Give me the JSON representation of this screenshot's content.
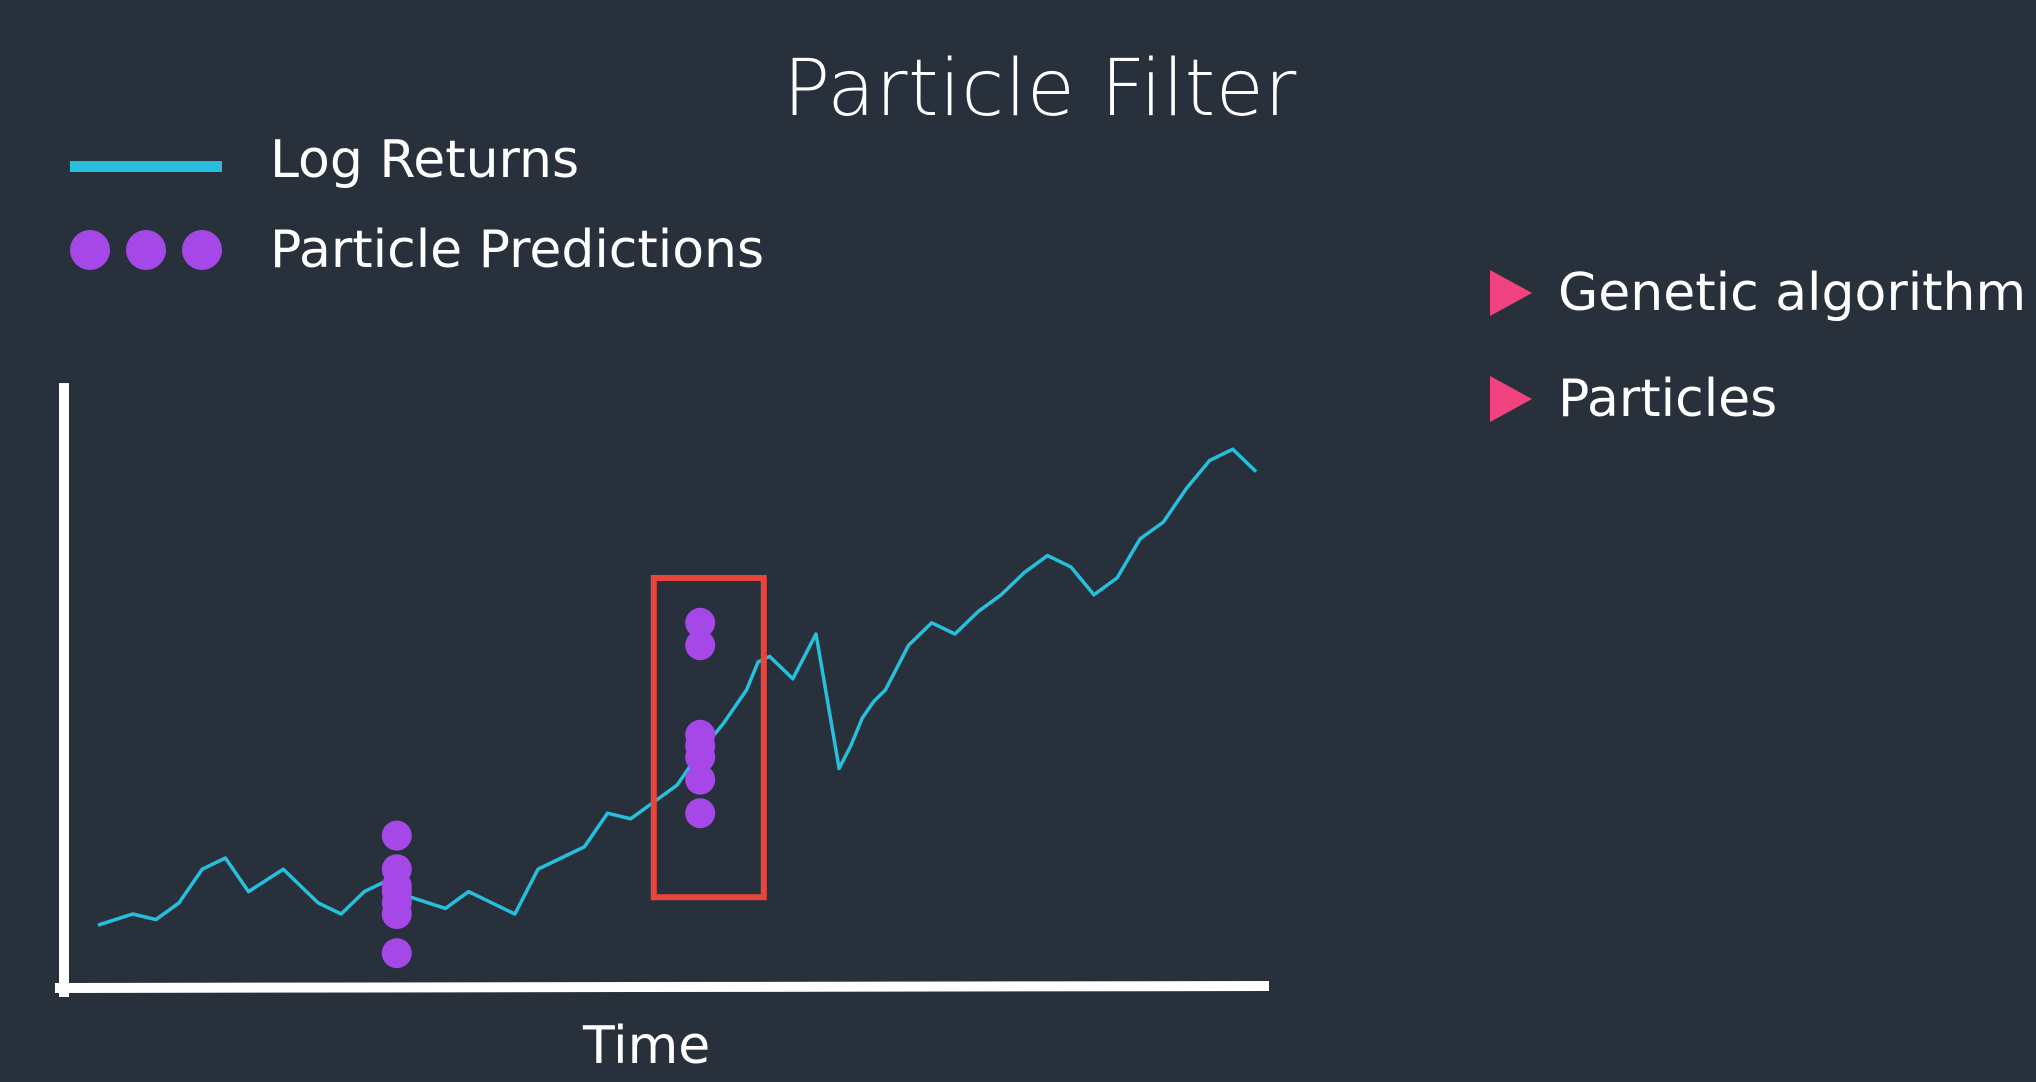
{
  "title": "Particle Filter",
  "legend": {
    "line_label": "Log Returns",
    "dots_label": "Particle Predictions"
  },
  "bullets": [
    {
      "text": "Genetic algorithm"
    },
    {
      "text": "Particles"
    }
  ],
  "colors": {
    "background": "#28313b",
    "line": "#27bfdc",
    "particles": "#a648e8",
    "highlight_box": "#e8453c",
    "bullet_icon": "#f0437f",
    "axes": "#ffffff"
  },
  "icons": {
    "bullet": "triangle-right-icon"
  },
  "chart_data": {
    "type": "line",
    "title": "Particle Filter",
    "xlabel": "Time",
    "ylabel": "",
    "xlim": [
      0,
      1000
    ],
    "ylim": [
      0,
      100
    ],
    "grid": false,
    "legend_position": "top-left",
    "series": [
      {
        "name": "Log Returns",
        "x": [
          0,
          30,
          50,
          70,
          90,
          110,
          130,
          160,
          190,
          210,
          230,
          250,
          270,
          300,
          320,
          340,
          360,
          380,
          400,
          420,
          440,
          460,
          480,
          500,
          520,
          540,
          560,
          570,
          580,
          600,
          620,
          640,
          650,
          660,
          670,
          680,
          700,
          720,
          740,
          760,
          780,
          800,
          820,
          840,
          860,
          880,
          900,
          920,
          940,
          960,
          980,
          1000
        ],
        "y": [
          8,
          10,
          9,
          12,
          18,
          20,
          14,
          18,
          12,
          10,
          14,
          16,
          13,
          11,
          14,
          12,
          10,
          18,
          20,
          22,
          28,
          27,
          30,
          33,
          39,
          44,
          50,
          55,
          56,
          52,
          60,
          36,
          40,
          45,
          48,
          50,
          58,
          62,
          60,
          64,
          67,
          71,
          74,
          72,
          67,
          70,
          77,
          80,
          86,
          91,
          93,
          89
        ]
      }
    ],
    "particle_groups": [
      {
        "name": "Particle Predictions",
        "x": 258,
        "y": [
          24,
          18,
          15,
          14,
          12,
          10,
          3
        ]
      },
      {
        "name": "Particle Predictions",
        "x": 520,
        "y": [
          62,
          58,
          42,
          40,
          38,
          34,
          28
        ]
      }
    ],
    "annotations": [
      {
        "type": "highlight-box",
        "x_range": [
          480,
          575
        ],
        "y_range": [
          13,
          70
        ]
      }
    ]
  }
}
